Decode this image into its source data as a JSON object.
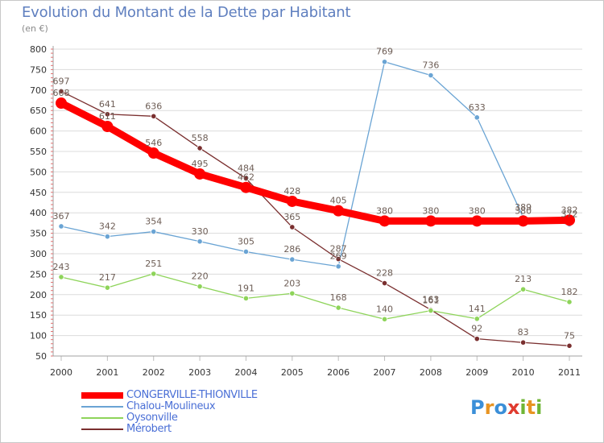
{
  "title": "Evolution du Montant de la Dette par Habitant",
  "subtitle": "(en €)",
  "logo": [
    "P",
    "r",
    "o",
    "x",
    "i",
    "t",
    "i"
  ],
  "chart_data": {
    "type": "line",
    "x": [
      "2000",
      "2001",
      "2002",
      "2003",
      "2004",
      "2005",
      "2006",
      "2007",
      "2008",
      "2009",
      "2010",
      "2011"
    ],
    "ylim": [
      50,
      800
    ],
    "yticks": [
      50,
      100,
      150,
      200,
      250,
      300,
      350,
      400,
      450,
      500,
      550,
      600,
      650,
      700,
      750,
      800
    ],
    "grid": "horizontal",
    "legend": "bottom",
    "series": [
      {
        "name": "Mérobert",
        "color": "#7a2f2f",
        "label_color": "#6d5d55",
        "values": [
          697,
          641,
          636,
          558,
          484,
          365,
          287,
          228,
          163,
          92,
          83,
          75
        ]
      },
      {
        "name": "Oysonville",
        "color": "#8ed45a",
        "label_color": "#6d5d55",
        "values": [
          243,
          217,
          251,
          220,
          191,
          203,
          168,
          140,
          161,
          141,
          213,
          182
        ]
      },
      {
        "name": "Chalou-Moulineux",
        "color": "#6aa4d4",
        "label_color": "#6d5d55",
        "values": [
          367,
          342,
          354,
          330,
          305,
          286,
          269,
          769,
          736,
          633,
          389,
          372
        ]
      },
      {
        "name": "CONGERVILLE-THIONVILLE",
        "color": "#ff0000",
        "label_color": "#6d5d55",
        "values": [
          668,
          611,
          546,
          495,
          462,
          428,
          405,
          380,
          380,
          380,
          380,
          382
        ]
      }
    ],
    "legend_order": [
      "CONGERVILLE-THIONVILLE",
      "Chalou-Moulineux",
      "Oysonville",
      "Mérobert"
    ]
  }
}
